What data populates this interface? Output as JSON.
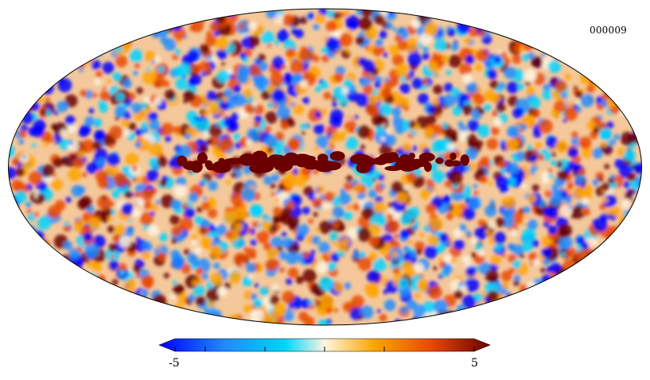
{
  "map": {
    "label": "000009",
    "projection": "mollweide",
    "colormap": [
      "#0000ff",
      "#1e8cff",
      "#00d4ff",
      "#fff5e0",
      "#ffa500",
      "#e84a00",
      "#6b0000"
    ]
  },
  "colorbar": {
    "min_label": "-5",
    "max_label": "5",
    "min": -5,
    "max": 5
  }
}
